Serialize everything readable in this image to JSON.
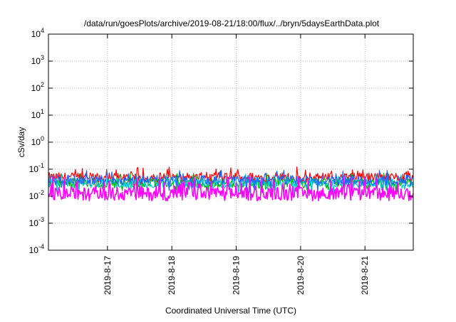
{
  "chart_data": {
    "type": "line",
    "title": "/data/run/goesPlots/archive/2019-08-21/18:00/flux/../bryn/5daysEarthData.plot",
    "xlabel": "Coordinated Universal Time (UTC)",
    "ylabel": "cSv/day",
    "yscale": "log",
    "ylim": [
      0.0001,
      10000
    ],
    "xlim": [
      "2019-08-16 02:00",
      "2019-08-21 18:00"
    ],
    "y_ticks": [
      {
        "value": 0.0001,
        "base": "10",
        "exp": "-4"
      },
      {
        "value": 0.001,
        "base": "10",
        "exp": "-3"
      },
      {
        "value": 0.01,
        "base": "10",
        "exp": "-2"
      },
      {
        "value": 0.1,
        "base": "10",
        "exp": "-1"
      },
      {
        "value": 1,
        "base": "10",
        "exp": "0"
      },
      {
        "value": 10,
        "base": "10",
        "exp": "1"
      },
      {
        "value": 100,
        "base": "10",
        "exp": "2"
      },
      {
        "value": 1000,
        "base": "10",
        "exp": "3"
      },
      {
        "value": 10000,
        "base": "10",
        "exp": "4"
      }
    ],
    "x_ticks": [
      {
        "date": "2019-08-17 00:00",
        "label": "2019-8-17"
      },
      {
        "date": "2019-08-18 00:00",
        "label": "2019-8-18"
      },
      {
        "date": "2019-08-19 00:00",
        "label": "2019-8-19"
      },
      {
        "date": "2019-08-20 00:00",
        "label": "2019-8-20"
      },
      {
        "date": "2019-08-21 00:00",
        "label": "2019-8-21"
      }
    ],
    "grid": true,
    "legend": "none",
    "series": [
      {
        "color": "#ff0000",
        "typical": 0.05,
        "min": 0.025,
        "max": 0.12
      },
      {
        "color": "#00b000",
        "typical": 0.03,
        "min": 0.012,
        "max": 0.07
      },
      {
        "color": "#00c8c8",
        "typical": 0.03,
        "min": 0.012,
        "max": 0.065
      },
      {
        "color": "#1e64ff",
        "typical": 0.04,
        "min": 0.015,
        "max": 0.09
      },
      {
        "color": "#ff00ff",
        "typical": 0.012,
        "min": 0.005,
        "max": 0.05
      }
    ]
  }
}
